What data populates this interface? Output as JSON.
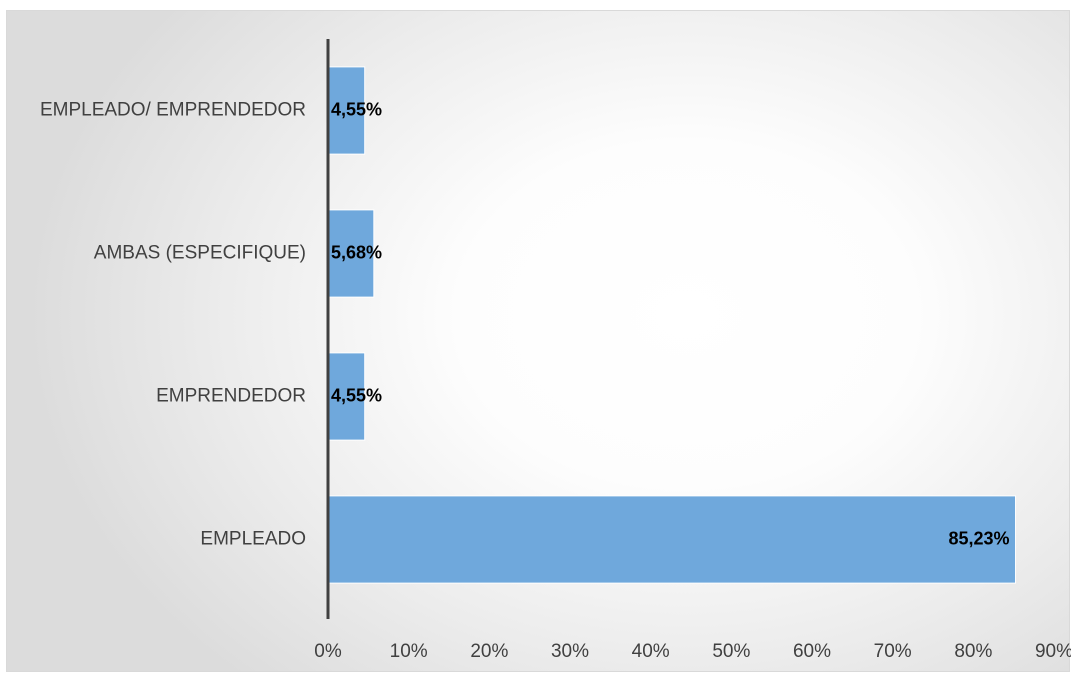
{
  "chart_data": {
    "type": "bar",
    "orientation": "horizontal",
    "categories": [
      "EMPLEADO/ EMPRENDEDOR",
      "AMBAS (ESPECIFIQUE)",
      "EMPRENDEDOR",
      "EMPLEADO"
    ],
    "values": [
      4.55,
      5.68,
      4.55,
      85.23
    ],
    "data_labels": [
      "4,55%",
      "5,68%",
      "4,55%",
      "85,23%"
    ],
    "title": "",
    "xlabel": "",
    "ylabel": "",
    "xlim": [
      0,
      90
    ],
    "x_ticks": [
      0,
      10,
      20,
      30,
      40,
      50,
      60,
      70,
      80,
      90
    ],
    "x_tick_labels": [
      "0%",
      "10%",
      "20%",
      "30%",
      "40%",
      "50%",
      "60%",
      "70%",
      "80%",
      "90%"
    ],
    "grid": false,
    "legend": "none",
    "bar_color": "#6fa8dc",
    "axis_color": "#404040"
  }
}
